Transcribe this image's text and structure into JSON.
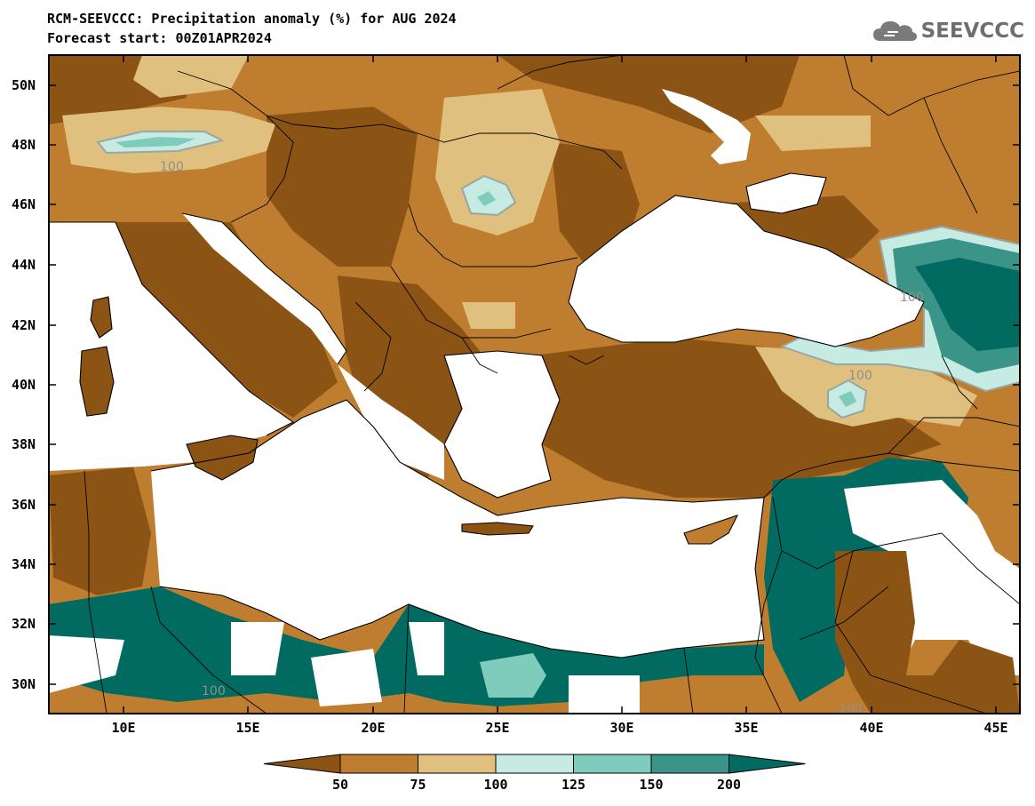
{
  "header": {
    "title": "RCM-SEEVCCC: Precipitation anomaly (%) for AUG 2024",
    "subtitle": "Forecast start: 00Z01APR2024",
    "logo_text": "SEEVCCC",
    "logo_icon": "cloud-icon"
  },
  "map": {
    "lat_labels": [
      "50N",
      "48N",
      "46N",
      "44N",
      "42N",
      "40N",
      "38N",
      "36N",
      "34N",
      "32N",
      "30N"
    ],
    "lon_labels": [
      "10E",
      "15E",
      "20E",
      "25E",
      "30E",
      "35E",
      "40E",
      "45E"
    ],
    "contour_labels": [
      "100",
      "100",
      "100",
      "100",
      "100"
    ]
  },
  "colorbar": {
    "ticks": [
      "50",
      "75",
      "100",
      "125",
      "150",
      "200"
    ],
    "colors": [
      "#8b5414",
      "#bf7e2f",
      "#dfc07e",
      "#c5ebe3",
      "#7fcbbc",
      "#3b9488",
      "#016b62"
    ]
  },
  "palette": {
    "very_dry": "#8b5414",
    "dry": "#bf7e2f",
    "slightly_dry": "#dfc07e",
    "slightly_wet": "#c5ebe3",
    "wet": "#7fcbbc",
    "very_wet": "#3b9488",
    "extreme_wet": "#016b62",
    "sea": "#ffffff"
  }
}
